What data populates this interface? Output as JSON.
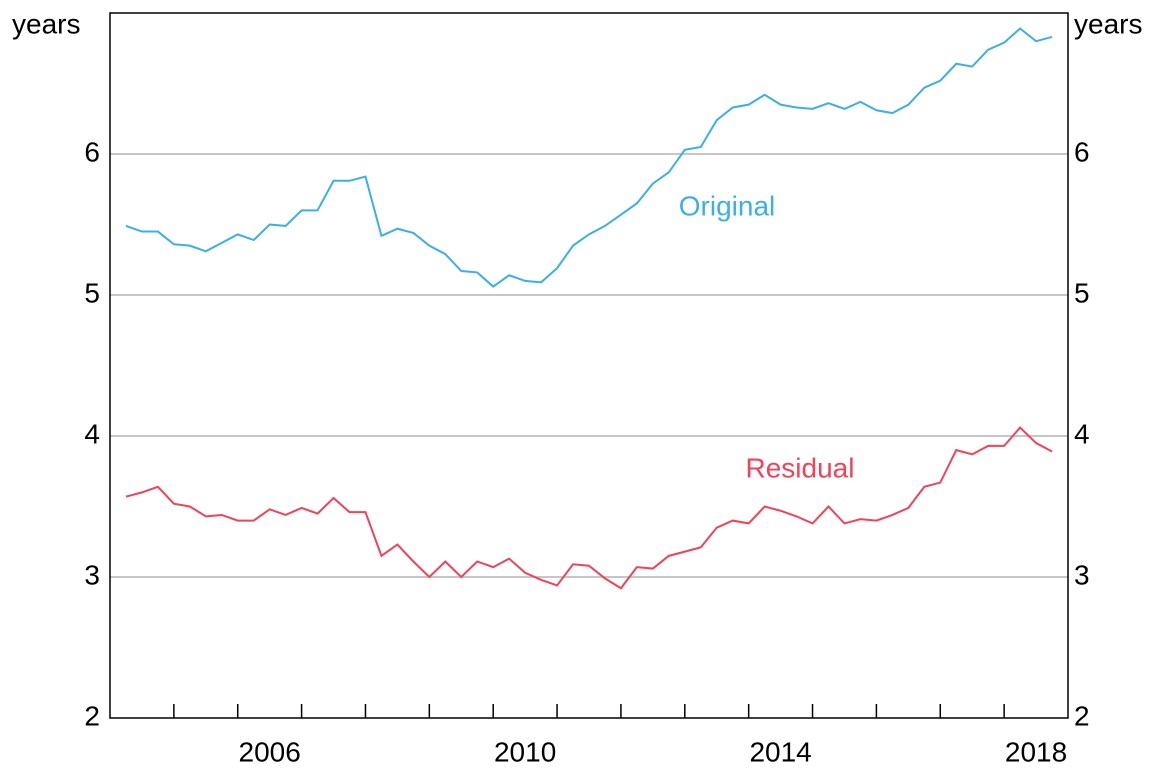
{
  "chart_data": {
    "type": "line",
    "y_label": "years",
    "y2_label": "years",
    "annotations": [
      "Original",
      "Residual"
    ],
    "x": [
      2004.25,
      2004.5,
      2004.75,
      2005,
      2005.25,
      2005.5,
      2005.75,
      2006,
      2006.25,
      2006.5,
      2006.75,
      2007,
      2007.25,
      2007.5,
      2007.75,
      2008,
      2008.25,
      2008.5,
      2008.75,
      2009,
      2009.25,
      2009.5,
      2009.75,
      2010,
      2010.25,
      2010.5,
      2010.75,
      2011,
      2011.25,
      2011.5,
      2011.75,
      2012,
      2012.25,
      2012.5,
      2012.75,
      2013,
      2013.25,
      2013.5,
      2013.75,
      2014,
      2014.25,
      2014.5,
      2014.75,
      2015,
      2015.25,
      2015.5,
      2015.75,
      2016,
      2016.25,
      2016.5,
      2016.75,
      2017,
      2017.25,
      2017.5,
      2017.75,
      2018,
      2018.25,
      2018.5,
      2018.75
    ],
    "series": [
      {
        "name": "Original",
        "color": "#3bb0e6",
        "values": [
          5.49,
          5.45,
          5.45,
          5.36,
          5.35,
          5.31,
          5.37,
          5.43,
          5.39,
          5.5,
          5.49,
          5.6,
          5.6,
          5.81,
          5.81,
          5.84,
          5.42,
          5.47,
          5.44,
          5.35,
          5.29,
          5.17,
          5.16,
          5.06,
          5.14,
          5.1,
          5.09,
          5.19,
          5.35,
          5.43,
          5.49,
          5.57,
          5.65,
          5.79,
          5.87,
          6.03,
          6.05,
          6.24,
          6.33,
          6.35,
          6.42,
          6.35,
          6.33,
          6.32,
          6.36,
          6.32,
          6.37,
          6.31,
          6.29,
          6.35,
          6.47,
          6.52,
          6.64,
          6.62,
          6.74,
          6.79,
          6.89,
          6.8,
          6.83
        ]
      },
      {
        "name": "Residual",
        "color": "#f0435a",
        "values": [
          3.57,
          3.6,
          3.64,
          3.52,
          3.5,
          3.43,
          3.44,
          3.4,
          3.4,
          3.48,
          3.44,
          3.49,
          3.45,
          3.56,
          3.46,
          3.46,
          3.15,
          3.23,
          3.11,
          3.0,
          3.11,
          3.0,
          3.11,
          3.07,
          3.13,
          3.03,
          2.98,
          2.94,
          3.09,
          3.08,
          2.99,
          2.92,
          3.07,
          3.06,
          3.15,
          3.18,
          3.21,
          3.35,
          3.4,
          3.38,
          3.5,
          3.47,
          3.43,
          3.38,
          3.5,
          3.38,
          3.41,
          3.4,
          3.44,
          3.49,
          3.64,
          3.67,
          3.9,
          3.87,
          3.93,
          3.93,
          4.06,
          3.95,
          3.89
        ]
      }
    ],
    "xlim": [
      2004,
      2019
    ],
    "xticks": [
      {
        "value": 2006.5,
        "label": "2006"
      },
      {
        "value": 2010.5,
        "label": "2010"
      },
      {
        "value": 2014.5,
        "label": "2014"
      },
      {
        "value": 2018.5,
        "label": "2018"
      }
    ],
    "xminor_ticks": [
      2005,
      2006,
      2007,
      2008,
      2009,
      2010,
      2011,
      2012,
      2013,
      2014,
      2015,
      2016,
      2017,
      2018
    ],
    "ylim": [
      2,
      7
    ],
    "yticks": [
      2,
      3,
      4,
      5,
      6
    ],
    "y2lim": [
      2,
      7
    ],
    "y2ticks": [
      2,
      3,
      4,
      5,
      6
    ],
    "grid": true
  }
}
